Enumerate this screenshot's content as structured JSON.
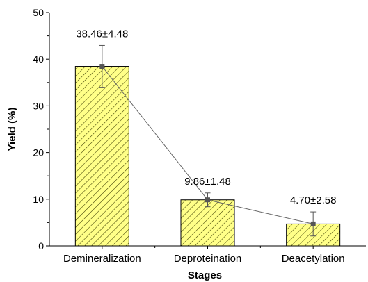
{
  "chart_data": {
    "type": "bar",
    "title": "",
    "xlabel": "Stages",
    "ylabel": "Yield (%)",
    "ylim": [
      0,
      50
    ],
    "yticks": [
      0,
      10,
      20,
      30,
      40,
      50
    ],
    "grid": false,
    "legend": "none",
    "categories": [
      "Demineralization",
      "Deproteination",
      "Deacetylation"
    ],
    "values": [
      38.46,
      9.86,
      4.7
    ],
    "errors": [
      4.48,
      1.48,
      2.58
    ],
    "data_labels": [
      "38.46±4.48",
      "9.86±1.48",
      "4.70±2.58"
    ],
    "overlay_line": true,
    "colors": {
      "bar_fill": "#ffff88",
      "bar_hatch": "#3a3a00",
      "line": "#666666",
      "marker": "#555555",
      "error_bar": "#555555",
      "axis": "#000000"
    }
  }
}
